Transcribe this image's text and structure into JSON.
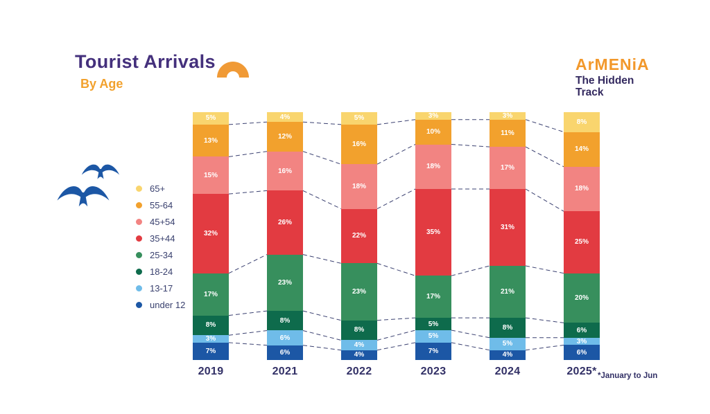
{
  "header": {
    "title": "Tourist Arrivals",
    "subtitle": "By Age"
  },
  "logo": {
    "brand": "ArMENiA",
    "tagline_line1": "The Hidden",
    "tagline_line2": "Track"
  },
  "colors": {
    "title": "#44307C",
    "subtitle": "#F2A12D",
    "brand_orange": "#F2982B",
    "tagline_navy": "#33295F",
    "axis_label": "#323066",
    "connector_line": "#3A4070",
    "bird_blue": "#1C57A5"
  },
  "legend": {
    "items": [
      {
        "label": "65+",
        "color": "#F9D56E"
      },
      {
        "label": "55-64",
        "color": "#F2A12D"
      },
      {
        "label": "45+54",
        "color": "#F28482"
      },
      {
        "label": "35+44",
        "color": "#E23B41"
      },
      {
        "label": "25-34",
        "color": "#378F5D"
      },
      {
        "label": "18-24",
        "color": "#0E6B4C"
      },
      {
        "label": "13-17",
        "color": "#6FBCE9"
      },
      {
        "label": "under 12",
        "color": "#1C57A5"
      }
    ]
  },
  "chart_data": {
    "type": "bar",
    "stacked": true,
    "title": "Tourist Arrivals By Age",
    "categories": [
      "2019",
      "2021",
      "2022",
      "2023",
      "2024",
      "2025*"
    ],
    "value_suffix": "%",
    "legend_position": "left",
    "series": [
      {
        "name": "65+",
        "color": "#F9D56E",
        "values": [
          5,
          4,
          5,
          3,
          3,
          8
        ]
      },
      {
        "name": "55-64",
        "color": "#F2A12D",
        "values": [
          13,
          12,
          16,
          10,
          11,
          14
        ]
      },
      {
        "name": "45+54",
        "color": "#F28482",
        "values": [
          15,
          16,
          18,
          18,
          17,
          18
        ]
      },
      {
        "name": "35+44",
        "color": "#E23B41",
        "values": [
          32,
          26,
          22,
          35,
          31,
          25
        ]
      },
      {
        "name": "25-34",
        "color": "#378F5D",
        "values": [
          17,
          23,
          23,
          17,
          21,
          20
        ]
      },
      {
        "name": "18-24",
        "color": "#0E6B4C",
        "values": [
          8,
          8,
          8,
          5,
          8,
          6
        ]
      },
      {
        "name": "13-17",
        "color": "#6FBCE9",
        "values": [
          3,
          6,
          4,
          5,
          5,
          3
        ]
      },
      {
        "name": "under 12",
        "color": "#1C57A5",
        "values": [
          7,
          6,
          4,
          7,
          4,
          6
        ]
      }
    ],
    "footnote": "*January to Jun"
  }
}
